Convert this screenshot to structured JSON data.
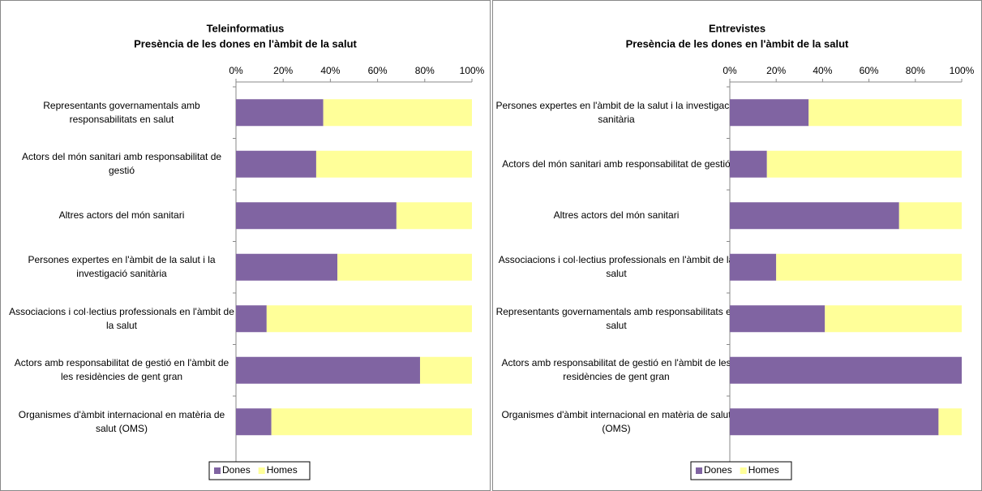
{
  "chart_data": [
    {
      "type": "bar",
      "stacked": true,
      "orientation": "horizontal",
      "title": "Teleinformatius",
      "subtitle": "Presència de les dones en l'àmbit de la salut",
      "categories": [
        "Representants governamentals amb responsabilitats en salut",
        "Actors del món sanitari amb responsabilitat de gestió",
        "Altres actors del món sanitari",
        "Persones expertes en l'àmbit de la salut i la investigació sanitària",
        "Associacions i col·lectius professionals en l'àmbit de la salut",
        "Actors amb responsabilitat de gestió en l'àmbit de les residències de gent gran",
        "Organismes d'àmbit internacional en matèria de salut (OMS)"
      ],
      "series": [
        {
          "name": "Dones",
          "color": "#8064a2",
          "values": [
            37,
            34,
            68,
            43,
            13,
            78,
            15
          ]
        },
        {
          "name": "Homes",
          "color": "#ffff99",
          "values": [
            63,
            66,
            32,
            57,
            87,
            22,
            85
          ]
        }
      ],
      "xlim": [
        0,
        100
      ],
      "xticks": [
        {
          "value": 0,
          "label": "0%"
        },
        {
          "value": 20,
          "label": "20%"
        },
        {
          "value": 40,
          "label": "40%"
        },
        {
          "value": 60,
          "label": "60%"
        },
        {
          "value": 80,
          "label": "80%"
        },
        {
          "value": 100,
          "label": "100%"
        }
      ],
      "legend": "bottom"
    },
    {
      "type": "bar",
      "stacked": true,
      "orientation": "horizontal",
      "title": "Entrevistes",
      "subtitle": "Presència de les dones en l'àmbit de la salut",
      "categories": [
        "Persones expertes en l'àmbit de la salut i la investigació sanitària",
        "Actors del món sanitari amb responsabilitat de gestió",
        "Altres actors del món sanitari",
        "Associacions i col·lectius professionals en l'àmbit de la salut",
        "Representants governamentals amb responsabilitats en salut",
        "Actors amb responsabilitat de gestió en l'àmbit de les residències de gent gran",
        "Organismes d'àmbit internacional en matèria de salut (OMS)"
      ],
      "series": [
        {
          "name": "Dones",
          "color": "#8064a2",
          "values": [
            34,
            16,
            73,
            20,
            41,
            100,
            90
          ]
        },
        {
          "name": "Homes",
          "color": "#ffff99",
          "values": [
            66,
            84,
            27,
            80,
            59,
            0,
            10
          ]
        }
      ],
      "xlim": [
        0,
        100
      ],
      "xticks": [
        {
          "value": 0,
          "label": "0%"
        },
        {
          "value": 20,
          "label": "20%"
        },
        {
          "value": 40,
          "label": "40%"
        },
        {
          "value": 60,
          "label": "60%"
        },
        {
          "value": 80,
          "label": "80%"
        },
        {
          "value": 100,
          "label": "100%"
        }
      ],
      "legend": "bottom"
    }
  ]
}
